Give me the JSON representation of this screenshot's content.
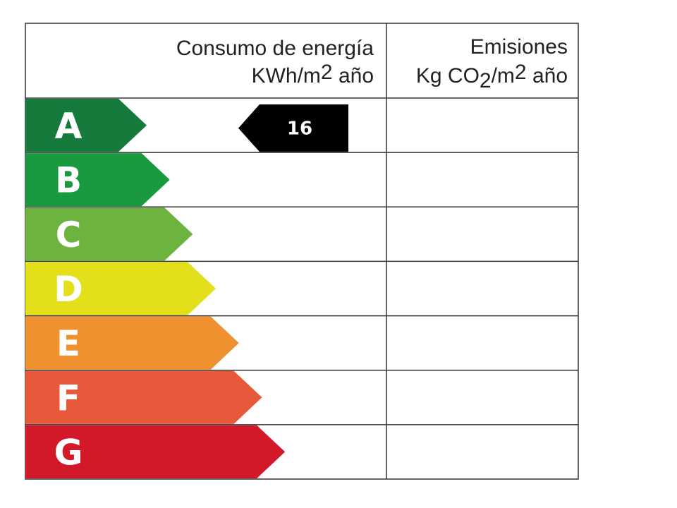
{
  "header": {
    "consumption": {
      "title": "Consumo de energía",
      "unit": [
        "KWh/m",
        "2",
        " año"
      ]
    },
    "emissions": {
      "title": "Emisiones",
      "unit": [
        "Kg CO",
        "2",
        "/m",
        "2",
        " año"
      ]
    }
  },
  "rows": [
    {
      "letter": "A",
      "color": "#157a3c",
      "consumption": 16
    },
    {
      "letter": "B",
      "color": "#1a9a3e"
    },
    {
      "letter": "C",
      "color": "#6cb33f"
    },
    {
      "letter": "D",
      "color": "#e3e01b"
    },
    {
      "letter": "E",
      "color": "#f0912f"
    },
    {
      "letter": "F",
      "color": "#e8583a"
    },
    {
      "letter": "G",
      "color": "#d2192a"
    }
  ]
}
